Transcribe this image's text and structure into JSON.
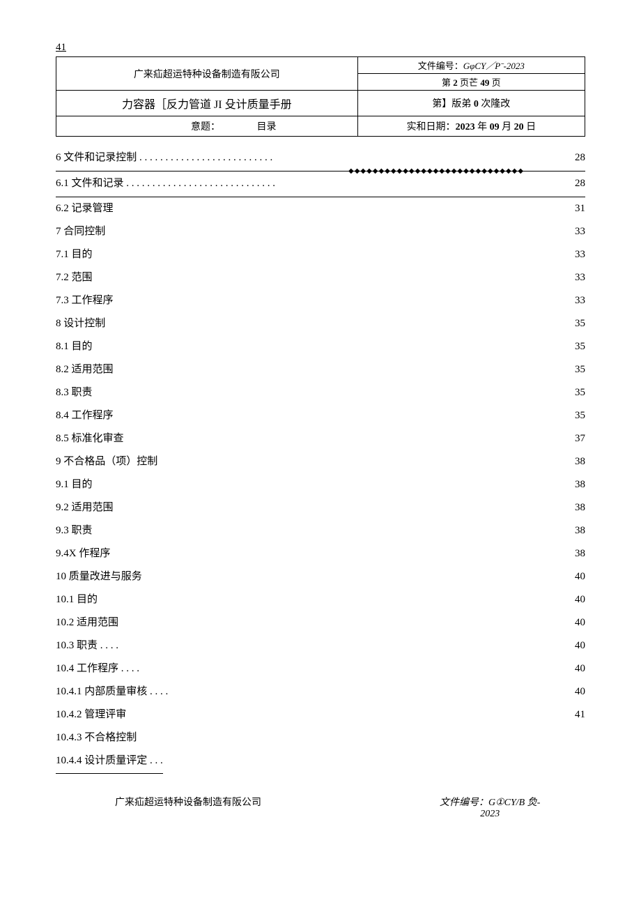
{
  "topLeft": "41",
  "header": {
    "company": "广来疝超运特种设备制造有阪公司",
    "docNumLabel": "文件编号：",
    "docNum": "GφCY／Pˉ-2023",
    "pageInfoPrefix": "第 ",
    "pageCurrent": "2",
    "pageMid": " 页芒 ",
    "pageTotal": "49",
    "pageSuffix": " 页",
    "manualTitle": "力容器［反力管道 JI 殳计质量手册",
    "versionPrefix": "第】版弟 ",
    "versionNum": "0",
    "versionSuffix": " 次隆改",
    "subjectLabel": "意题：",
    "subjectValue": "目录",
    "dateLabel": "实和日期：",
    "dateYear": "2023",
    "dateY": " 年 ",
    "dateMonth": "09",
    "dateM": " 月 ",
    "dateDay": "20",
    "dateD": " 日"
  },
  "toc": [
    {
      "label": "6 文件和记录控制 . . . . . . . . . . . . . . . . . . . . . . . . . .",
      "page": "28",
      "underline": true,
      "diamonds": true
    },
    {
      "label": "6.1 文件和记录 . . . . . . . . . . . . . . . . . . . . . . . . . . . . .",
      "page": "28",
      "underline": true
    },
    {
      "label": "6.2 记录管理",
      "page": "31"
    },
    {
      "label": "7 合同控制",
      "page": "33"
    },
    {
      "label": "7.1 目的",
      "page": "33"
    },
    {
      "label": "7.2 范围",
      "page": "33"
    },
    {
      "label": "7.3 工作程序",
      "page": "33"
    },
    {
      "label": "8 设计控制",
      "page": "35"
    },
    {
      "label": "8.1 目的",
      "page": "35"
    },
    {
      "label": "8.2 适用范围",
      "page": "35"
    },
    {
      "label": "8.3 职责",
      "page": "35"
    },
    {
      "label": "8.4 工作程序",
      "page": "35"
    },
    {
      "label": "8.5 标准化审查",
      "page": "37"
    },
    {
      "label": "9 不合格品（项）控制",
      "page": "38"
    },
    {
      "label": "9.1 目的",
      "page": "38"
    },
    {
      "label": "9.2 适用范围",
      "page": "38"
    },
    {
      "label": "9.3 职责",
      "page": "38"
    },
    {
      "label": "9.4X 作程序",
      "page": "38"
    },
    {
      "label": "10 质量改进与服务",
      "page": "40"
    },
    {
      "label": "10.1 目的",
      "page": "40"
    },
    {
      "label": "10.2 适用范围",
      "page": "40"
    },
    {
      "label": "10.3 职责 . . . .",
      "page": "40"
    },
    {
      "label": "10.4 工作程序  . . . .",
      "page": "40"
    },
    {
      "label": "10.4.1 内部质量审核 . . . .",
      "page": "40"
    },
    {
      "label": "10.4.2 管理评审",
      "page": "41"
    },
    {
      "label": "10.4.3 不合格控制",
      "page": ""
    },
    {
      "label": "10.4.4 设计质量评定 . . .",
      "page": "",
      "selfUnderline": true
    }
  ],
  "diamonds": "◆◆◆◆◆◆◆◆◆◆◆◆◆◆◆◆◆◆◆◆◆◆◆◆◆◆◆◆◆",
  "footer": {
    "company": "广来疝超运特种设备制造有阪公司",
    "docNumLabel": "文件编号：",
    "docNum": "G①CY/B 烉-",
    "docNum2": "2023"
  }
}
